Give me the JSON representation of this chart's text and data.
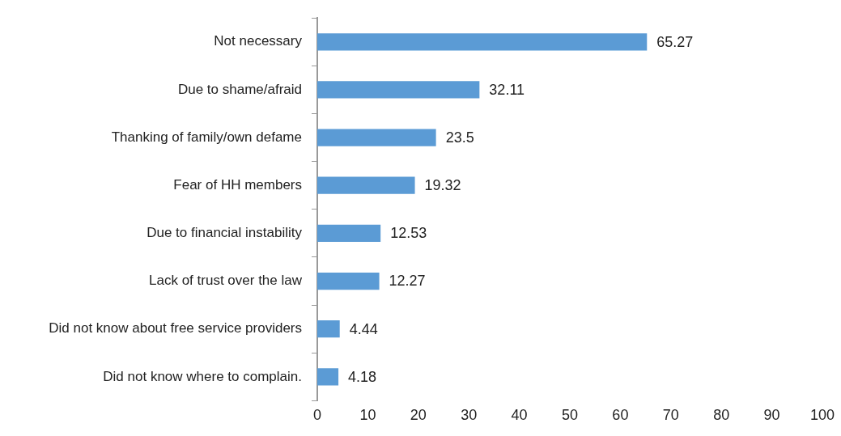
{
  "chart_data": {
    "type": "bar",
    "orientation": "horizontal",
    "categories": [
      "Not necessary",
      "Due to shame/afraid",
      "Thanking of family/own defame",
      "Fear of HH members",
      "Due to financial instability",
      "Lack of trust over the law",
      "Did not know about free service providers",
      "Did not know where to complain."
    ],
    "values": [
      65.27,
      32.11,
      23.5,
      19.32,
      12.53,
      12.27,
      4.44,
      4.18
    ],
    "color": "#5b9bd5",
    "xlim": [
      0,
      100
    ],
    "xticks": [
      0,
      10,
      20,
      30,
      40,
      50,
      60,
      70,
      80,
      90,
      100
    ],
    "data_labels": true,
    "grid": false,
    "legend": false
  }
}
